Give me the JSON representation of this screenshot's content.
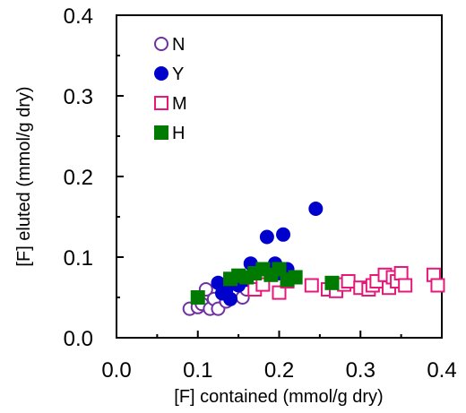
{
  "chart_data": {
    "type": "scatter",
    "title": "",
    "xlabel": "[F] contained (mmol/g dry)",
    "ylabel": "[F] eluted (mmol/g dry)",
    "xlim": [
      0.0,
      0.4
    ],
    "ylim": [
      0.0,
      0.4
    ],
    "xticks": [
      "0.0",
      "0.1",
      "0.2",
      "0.3",
      "0.4"
    ],
    "yticks": [
      "0.0",
      "0.1",
      "0.2",
      "0.3",
      "0.4"
    ],
    "grid": false,
    "legend_position": "top-left",
    "series": [
      {
        "name": "N",
        "marker": "open-circle",
        "color": "#7030a0",
        "points": [
          [
            0.09,
            0.036
          ],
          [
            0.1,
            0.038
          ],
          [
            0.105,
            0.042
          ],
          [
            0.11,
            0.06
          ],
          [
            0.115,
            0.036
          ],
          [
            0.12,
            0.048
          ],
          [
            0.125,
            0.036
          ],
          [
            0.135,
            0.045
          ],
          [
            0.155,
            0.05
          ],
          [
            0.16,
            0.06
          ]
        ]
      },
      {
        "name": "Y",
        "marker": "filled-circle",
        "color": "#0000cc",
        "points": [
          [
            0.125,
            0.068
          ],
          [
            0.13,
            0.055
          ],
          [
            0.135,
            0.06
          ],
          [
            0.14,
            0.048
          ],
          [
            0.15,
            0.065
          ],
          [
            0.16,
            0.072
          ],
          [
            0.165,
            0.092
          ],
          [
            0.175,
            0.085
          ],
          [
            0.185,
            0.125
          ],
          [
            0.195,
            0.092
          ],
          [
            0.2,
            0.08
          ],
          [
            0.205,
            0.128
          ],
          [
            0.21,
            0.085
          ],
          [
            0.245,
            0.16
          ]
        ]
      },
      {
        "name": "M",
        "marker": "open-square",
        "color": "#e6197a",
        "points": [
          [
            0.17,
            0.06
          ],
          [
            0.18,
            0.066
          ],
          [
            0.2,
            0.056
          ],
          [
            0.21,
            0.07
          ],
          [
            0.24,
            0.065
          ],
          [
            0.26,
            0.06
          ],
          [
            0.27,
            0.058
          ],
          [
            0.28,
            0.066
          ],
          [
            0.285,
            0.07
          ],
          [
            0.3,
            0.062
          ],
          [
            0.31,
            0.06
          ],
          [
            0.315,
            0.065
          ],
          [
            0.32,
            0.07
          ],
          [
            0.33,
            0.078
          ],
          [
            0.335,
            0.062
          ],
          [
            0.34,
            0.075
          ],
          [
            0.345,
            0.07
          ],
          [
            0.35,
            0.08
          ],
          [
            0.355,
            0.065
          ],
          [
            0.39,
            0.078
          ],
          [
            0.395,
            0.065
          ]
        ]
      },
      {
        "name": "H",
        "marker": "filled-square",
        "color": "#007a00",
        "points": [
          [
            0.1,
            0.05
          ],
          [
            0.14,
            0.073
          ],
          [
            0.15,
            0.077
          ],
          [
            0.16,
            0.075
          ],
          [
            0.17,
            0.08
          ],
          [
            0.18,
            0.085
          ],
          [
            0.19,
            0.078
          ],
          [
            0.2,
            0.085
          ],
          [
            0.21,
            0.072
          ],
          [
            0.22,
            0.075
          ],
          [
            0.265,
            0.068
          ]
        ]
      }
    ]
  }
}
